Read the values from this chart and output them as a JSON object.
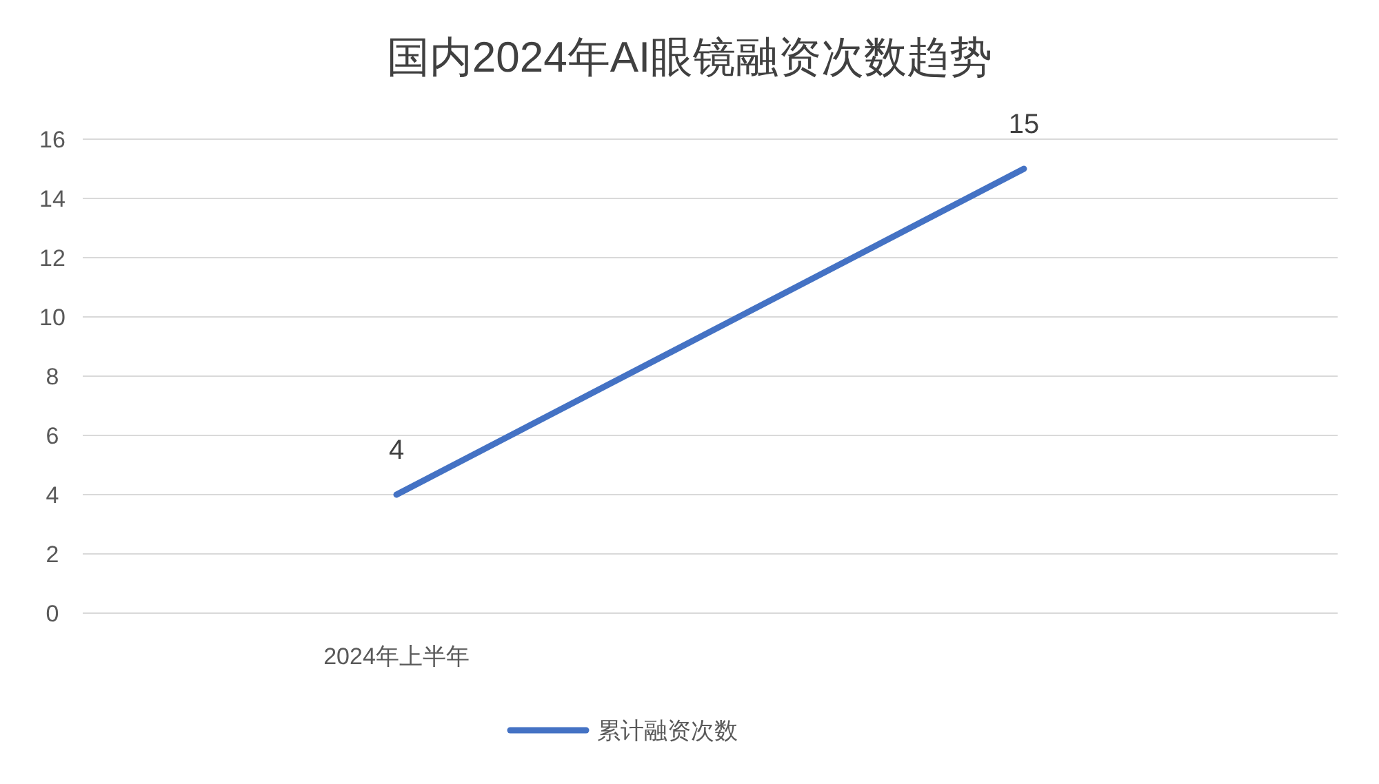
{
  "chart_data": {
    "type": "line",
    "title": "国内2024年AI眼镜融资次数趋势",
    "categories": [
      "2024年上半年",
      null
    ],
    "series": [
      {
        "name": "累计融资次数",
        "color": "#4472c4",
        "values": [
          4,
          15
        ]
      }
    ],
    "ylim": [
      0,
      16
    ],
    "yticks": [
      0,
      2,
      4,
      6,
      8,
      10,
      12,
      14,
      16
    ],
    "grid": "y",
    "legend": "bottom",
    "data_labels": true,
    "marker": "none",
    "line_style": "solid"
  }
}
